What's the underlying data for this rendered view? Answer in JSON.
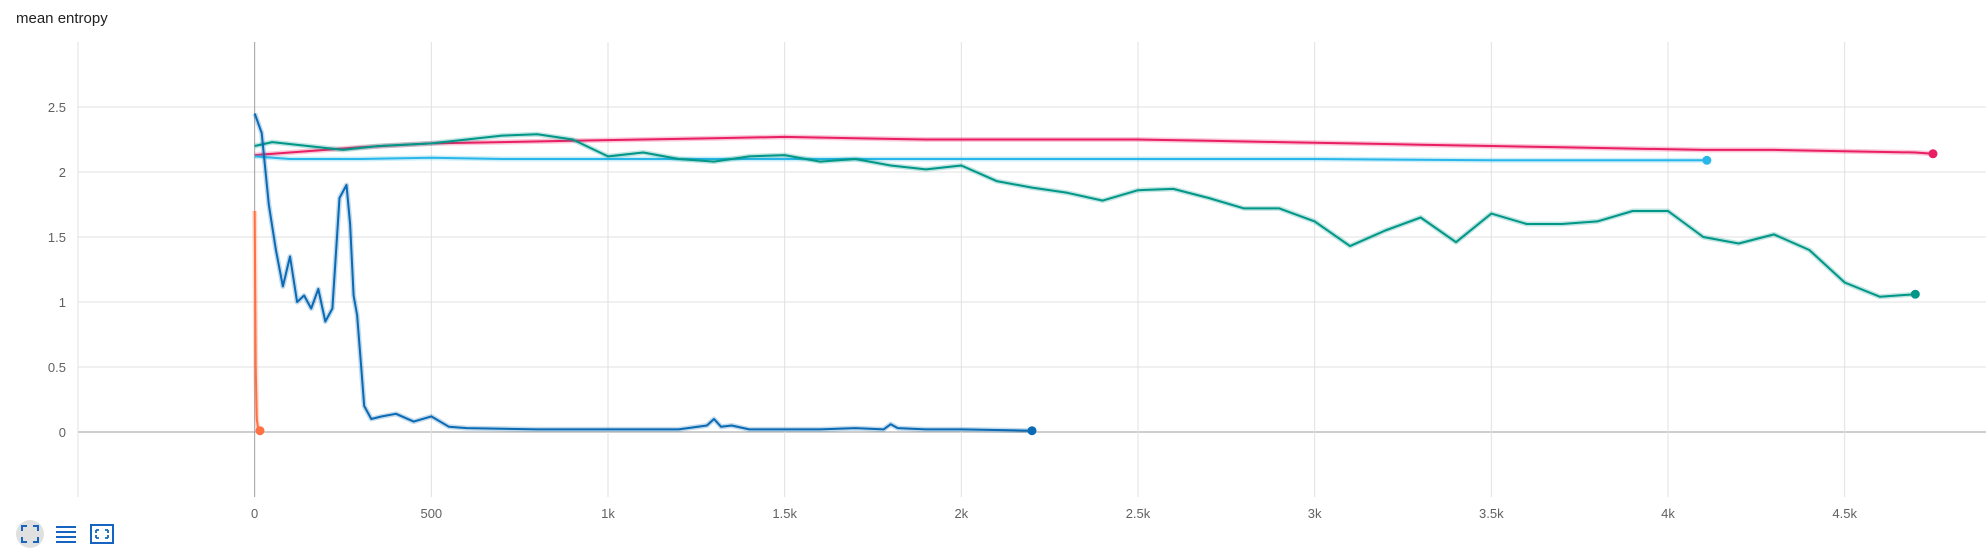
{
  "chart_data": {
    "type": "line",
    "title": "mean entropy",
    "xlim": [
      -500,
      4900
    ],
    "ylim": [
      -0.5,
      3
    ],
    "x_ticks": [
      {
        "value": 0,
        "label": "0"
      },
      {
        "value": 500,
        "label": "500"
      },
      {
        "value": 1000,
        "label": "1k"
      },
      {
        "value": 1500,
        "label": "1.5k"
      },
      {
        "value": 2000,
        "label": "2k"
      },
      {
        "value": 2500,
        "label": "2.5k"
      },
      {
        "value": 3000,
        "label": "3k"
      },
      {
        "value": 3500,
        "label": "3.5k"
      },
      {
        "value": 4000,
        "label": "4k"
      },
      {
        "value": 4500,
        "label": "4.5k"
      }
    ],
    "y_ticks": [
      {
        "value": 0,
        "label": "0"
      },
      {
        "value": 0.5,
        "label": "0.5"
      },
      {
        "value": 1,
        "label": "1"
      },
      {
        "value": 1.5,
        "label": "1.5"
      },
      {
        "value": 2,
        "label": "2"
      },
      {
        "value": 2.5,
        "label": "2.5"
      }
    ],
    "grid": true,
    "series": [
      {
        "color": "#e91e63",
        "x": [
          0,
          100,
          300,
          500,
          700,
          900,
          1100,
          1300,
          1500,
          1700,
          1900,
          2100,
          2300,
          2500,
          2700,
          2900,
          3100,
          3300,
          3500,
          3700,
          3900,
          4100,
          4300,
          4500,
          4700,
          4750
        ],
        "y": [
          2.13,
          2.15,
          2.19,
          2.22,
          2.23,
          2.24,
          2.25,
          2.26,
          2.27,
          2.26,
          2.25,
          2.25,
          2.25,
          2.25,
          2.24,
          2.23,
          2.22,
          2.21,
          2.2,
          2.19,
          2.18,
          2.17,
          2.17,
          2.16,
          2.15,
          2.14
        ]
      },
      {
        "color": "#29b6e8",
        "x": [
          0,
          100,
          300,
          500,
          700,
          1000,
          1300,
          1600,
          2000,
          2500,
          3000,
          3500,
          4000,
          4110
        ],
        "y": [
          2.12,
          2.1,
          2.1,
          2.11,
          2.1,
          2.1,
          2.1,
          2.1,
          2.1,
          2.1,
          2.1,
          2.09,
          2.09,
          2.09
        ]
      },
      {
        "color": "#009688",
        "x": [
          0,
          50,
          150,
          250,
          350,
          500,
          600,
          700,
          800,
          900,
          1000,
          1100,
          1200,
          1300,
          1400,
          1500,
          1600,
          1700,
          1800,
          1900,
          2000,
          2100,
          2200,
          2300,
          2400,
          2500,
          2600,
          2700,
          2800,
          2900,
          3000,
          3100,
          3200,
          3300,
          3400,
          3500,
          3600,
          3700,
          3800,
          3900,
          4000,
          4100,
          4200,
          4300,
          4400,
          4500,
          4600,
          4700
        ],
        "y": [
          2.2,
          2.23,
          2.2,
          2.17,
          2.2,
          2.22,
          2.25,
          2.28,
          2.29,
          2.25,
          2.12,
          2.15,
          2.1,
          2.08,
          2.12,
          2.13,
          2.08,
          2.1,
          2.05,
          2.02,
          2.05,
          1.93,
          1.88,
          1.84,
          1.78,
          1.86,
          1.87,
          1.8,
          1.72,
          1.72,
          1.62,
          1.43,
          1.55,
          1.65,
          1.46,
          1.68,
          1.6,
          1.6,
          1.62,
          1.7,
          1.7,
          1.5,
          1.45,
          1.52,
          1.4,
          1.15,
          1.04,
          1.06
        ]
      },
      {
        "color": "#0a6ab4",
        "x": [
          0,
          20,
          40,
          60,
          80,
          100,
          120,
          140,
          160,
          180,
          200,
          220,
          240,
          250,
          260,
          270,
          280,
          290,
          300,
          310,
          330,
          360,
          400,
          450,
          500,
          550,
          600,
          800,
          1000,
          1200,
          1280,
          1300,
          1320,
          1350,
          1400,
          1600,
          1700,
          1780,
          1800,
          1820,
          1900,
          2000,
          2200
        ],
        "y": [
          2.45,
          2.3,
          1.75,
          1.4,
          1.12,
          1.35,
          1.0,
          1.05,
          0.95,
          1.1,
          0.85,
          0.95,
          1.8,
          1.85,
          1.9,
          1.6,
          1.05,
          0.9,
          0.55,
          0.2,
          0.1,
          0.12,
          0.14,
          0.08,
          0.12,
          0.04,
          0.03,
          0.02,
          0.02,
          0.02,
          0.05,
          0.1,
          0.04,
          0.05,
          0.02,
          0.02,
          0.03,
          0.02,
          0.06,
          0.03,
          0.02,
          0.02,
          0.01
        ]
      },
      {
        "color": "#ff7043",
        "x": [
          0,
          3,
          6,
          10,
          15
        ],
        "y": [
          1.7,
          0.5,
          0.1,
          0.02,
          0.01
        ]
      }
    ]
  },
  "toolbar": {
    "icons": [
      "fullscreen-icon",
      "data-list-icon",
      "fit-domain-icon"
    ],
    "icon_color": "#1565c0"
  }
}
